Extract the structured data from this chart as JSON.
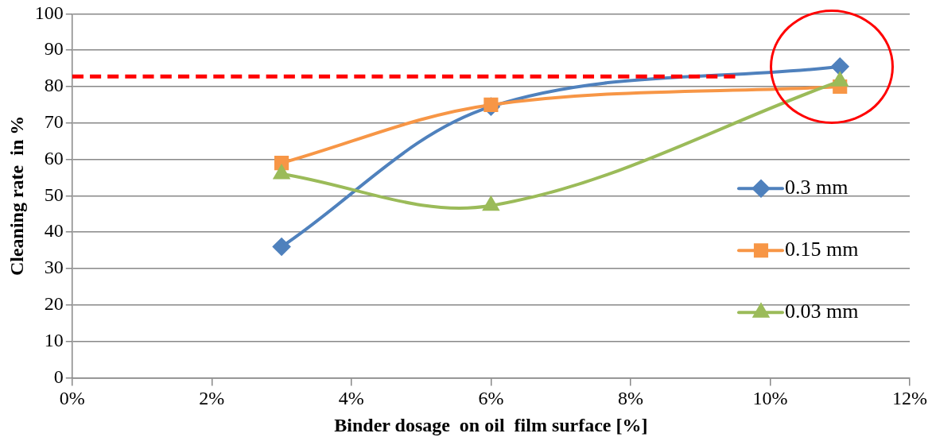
{
  "chart_data": {
    "type": "line",
    "xlabel": "Binder dosage  on oil  film surface [%]",
    "ylabel": "Cleaning rate  in %",
    "x": [
      3,
      6,
      11
    ],
    "series": [
      {
        "name": "0.3 mm",
        "color": "#4f81bd",
        "marker": "diamond",
        "values": [
          36,
          74.5,
          85.5
        ]
      },
      {
        "name": "0.15 mm",
        "color": "#f79646",
        "marker": "square",
        "values": [
          59,
          75,
          80
        ]
      },
      {
        "name": "0.03 mm",
        "color": "#9bbb59",
        "marker": "triangle",
        "values": [
          56,
          47.3,
          81.5
        ]
      },
      {
        "color": "#ff0000",
        "x": [
          0,
          9.5
        ],
        "values": [
          82.8,
          82.8
        ],
        "marker": "none",
        "line_style": "dashed"
      }
    ],
    "xlim": [
      0,
      12
    ],
    "xticks": [
      {
        "value": 0,
        "label": "0%"
      },
      {
        "value": 2,
        "label": "2%"
      },
      {
        "value": 4,
        "label": "4%"
      },
      {
        "value": 6,
        "label": "6%"
      },
      {
        "value": 8,
        "label": "8%"
      },
      {
        "value": 10,
        "label": "10%"
      },
      {
        "value": 12,
        "label": "12%"
      }
    ],
    "ylim": [
      0,
      100
    ],
    "yticks": [
      0,
      10,
      20,
      30,
      40,
      50,
      60,
      70,
      80,
      90,
      100
    ],
    "grid": "y",
    "legend": "right"
  }
}
